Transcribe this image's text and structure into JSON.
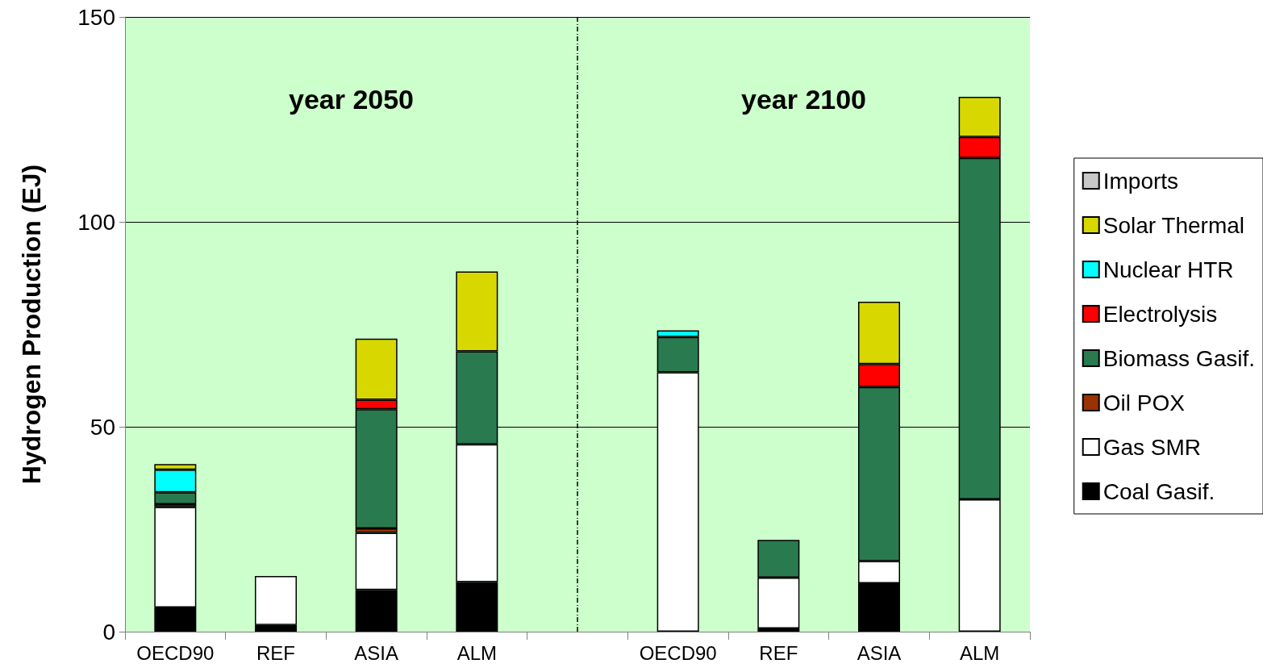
{
  "chart_data": {
    "type": "bar",
    "stacked": true,
    "ylabel": "Hydrogen Production (EJ)",
    "annotations": [
      "year 2050",
      "year 2100"
    ],
    "categories": [
      "OECD90",
      "REF",
      "ASIA",
      "ALM",
      null,
      "OECD90",
      "REF",
      "ASIA",
      "ALM"
    ],
    "series": [
      {
        "name": "Coal Gasif.",
        "color": "#000000",
        "values": [
          5.9,
          1.6,
          10.2,
          12.1,
          null,
          0,
          0.8,
          11.8,
          0
        ]
      },
      {
        "name": "Gas SMR",
        "color": "#ffffff",
        "values": [
          24.5,
          12.0,
          13.9,
          33.6,
          null,
          63.3,
          12.4,
          5.4,
          32.3
        ]
      },
      {
        "name": "Oil POX",
        "color": "#993300",
        "values": [
          0.7,
          0,
          1.1,
          0,
          null,
          0,
          0,
          0,
          0
        ]
      },
      {
        "name": "Biomass Gasif.",
        "color": "#2a7a50",
        "values": [
          2.9,
          0,
          29.1,
          22.7,
          null,
          8.6,
          9.2,
          42.5,
          83.3
        ]
      },
      {
        "name": "Electrolysis",
        "color": "#ff0000",
        "values": [
          0,
          0,
          2.3,
          0,
          null,
          0,
          0,
          5.6,
          5.1
        ]
      },
      {
        "name": "Nuclear HTR",
        "color": "#00ffff",
        "values": [
          5.5,
          0,
          0,
          0,
          null,
          1.6,
          0,
          0,
          0
        ]
      },
      {
        "name": "Solar Thermal",
        "color": "#d8d800",
        "values": [
          1.4,
          0,
          14.9,
          19.5,
          null,
          0,
          0,
          15.2,
          9.8
        ]
      },
      {
        "name": "Imports",
        "color": "#c8c8c8",
        "values": [
          0,
          0,
          0,
          0,
          null,
          0,
          0,
          0,
          0
        ]
      }
    ],
    "ylim": [
      0,
      150
    ],
    "yticks": [
      0,
      50,
      100,
      150
    ],
    "grid": "y",
    "legend": "right"
  }
}
